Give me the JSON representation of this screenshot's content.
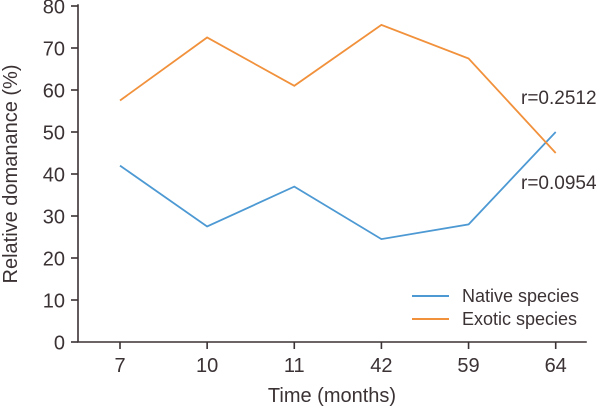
{
  "figure": {
    "background": "#ffffff",
    "text_color": "#3B3234",
    "axis_color": "#3B3234"
  },
  "chart_data": {
    "type": "line",
    "title": "",
    "xlabel": "Time (months)",
    "ylabel": "Relative domanance (%)",
    "categories": [
      "7",
      "10",
      "11",
      "42",
      "59",
      "64"
    ],
    "series": [
      {
        "name": "Native species",
        "color": "#4D99D3",
        "values": [
          42,
          27.5,
          37,
          24.5,
          28,
          50
        ],
        "annotation": "r=0.0954"
      },
      {
        "name": "Exotic species",
        "color": "#F1913C",
        "values": [
          57.5,
          72.5,
          61,
          75.5,
          67.5,
          45
        ],
        "annotation": "r=0.2512"
      }
    ],
    "ylim": [
      0,
      80
    ],
    "y_ticks": [
      0,
      10,
      20,
      30,
      40,
      50,
      60,
      70,
      80
    ],
    "grid": false,
    "legend_position": "lower right"
  }
}
